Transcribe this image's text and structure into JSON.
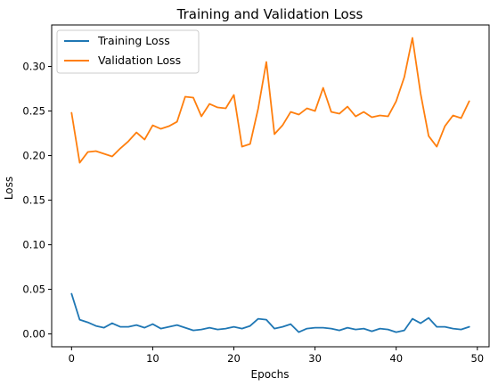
{
  "chart_data": {
    "type": "line",
    "title": "Training and Validation Loss",
    "xlabel": "Epochs",
    "ylabel": "Loss",
    "xlim": [
      -2.45,
      51.45
    ],
    "ylim": [
      -0.0144,
      0.3465
    ],
    "x_ticks": [
      0,
      10,
      20,
      30,
      40,
      50
    ],
    "y_ticks": [
      0.0,
      0.05,
      0.1,
      0.15,
      0.2,
      0.25,
      0.3
    ],
    "x_tick_labels": [
      "0",
      "10",
      "20",
      "30",
      "40",
      "50"
    ],
    "y_tick_labels": [
      "0.00",
      "0.05",
      "0.10",
      "0.15",
      "0.20",
      "0.25",
      "0.30"
    ],
    "grid": false,
    "legend_position": "upper-left",
    "x": [
      0,
      1,
      2,
      3,
      4,
      5,
      6,
      7,
      8,
      9,
      10,
      11,
      12,
      13,
      14,
      15,
      16,
      17,
      18,
      19,
      20,
      21,
      22,
      23,
      24,
      25,
      26,
      27,
      28,
      29,
      30,
      31,
      32,
      33,
      34,
      35,
      36,
      37,
      38,
      39,
      40,
      41,
      42,
      43,
      44,
      45,
      46,
      47,
      48,
      49
    ],
    "series": [
      {
        "name": "Training Loss",
        "color": "#1f77b4",
        "values": [
          0.045,
          0.016,
          0.013,
          0.009,
          0.007,
          0.012,
          0.008,
          0.008,
          0.01,
          0.007,
          0.011,
          0.006,
          0.008,
          0.01,
          0.007,
          0.004,
          0.005,
          0.007,
          0.005,
          0.006,
          0.008,
          0.006,
          0.009,
          0.017,
          0.016,
          0.006,
          0.008,
          0.011,
          0.002,
          0.006,
          0.007,
          0.007,
          0.006,
          0.004,
          0.007,
          0.005,
          0.006,
          0.003,
          0.006,
          0.005,
          0.002,
          0.004,
          0.017,
          0.012,
          0.018,
          0.008,
          0.008,
          0.006,
          0.005,
          0.008
        ]
      },
      {
        "name": "Validation Loss",
        "color": "#ff7f0e",
        "values": [
          0.248,
          0.192,
          0.204,
          0.205,
          0.202,
          0.199,
          0.208,
          0.216,
          0.226,
          0.218,
          0.234,
          0.23,
          0.233,
          0.238,
          0.266,
          0.265,
          0.244,
          0.258,
          0.254,
          0.253,
          0.268,
          0.21,
          0.213,
          0.253,
          0.305,
          0.224,
          0.234,
          0.249,
          0.246,
          0.253,
          0.25,
          0.276,
          0.249,
          0.247,
          0.255,
          0.244,
          0.249,
          0.243,
          0.245,
          0.244,
          0.261,
          0.288,
          0.332,
          0.27,
          0.222,
          0.21,
          0.233,
          0.245,
          0.242,
          0.261
        ]
      }
    ]
  }
}
